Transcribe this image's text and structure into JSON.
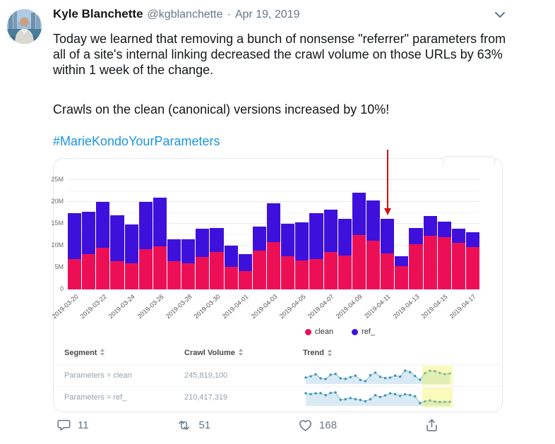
{
  "tweet": {
    "author": "Kyle Blanchette",
    "handle": "@kgblanchette",
    "separator": "·",
    "date": "Apr 19, 2019",
    "body_p1": "Today we learned that removing a bunch of nonsense \"referrer\" parameters from all of a site's internal linking decreased the crawl volume on those URLs by 63% within 1 week of the change.",
    "body_p2": "Crawls on the clean (canonical) versions increased by 10%!",
    "hashtag": "#MarieKondoYourParameters"
  },
  "actions": {
    "reply_count": "11",
    "retweet_count": "51",
    "like_count": "168"
  },
  "legend": [
    {
      "label": "clean",
      "color": "#ed0f56"
    },
    {
      "label": "ref_",
      "color": "#3e10dc"
    }
  ],
  "table": {
    "headers": [
      "Segment",
      "Crawl Volume",
      "Trend"
    ],
    "rows": [
      {
        "segment": "Parameters = clean",
        "crawl_volume": "245,819,100",
        "trend_index": 1
      },
      {
        "segment": "Parameters = ref_",
        "crawl_volume": "210,417,319",
        "trend_index": 2
      }
    ]
  },
  "colors": {
    "link": "#1b95e0",
    "muted": "#657786",
    "arrow": "#d41111",
    "spark_line": "#7fbdd6",
    "spark_dot": "#3e93b8",
    "spark_fill": "#d9eaf4",
    "spark_highlight": "#f0f24e"
  },
  "chart_data": [
    {
      "type": "bar",
      "stacked": true,
      "values_unit": "millions of crawls",
      "x": [
        "2019-03-20",
        "2019-03-21",
        "2019-03-22",
        "2019-03-23",
        "2019-03-24",
        "2019-03-25",
        "2019-03-26",
        "2019-03-27",
        "2019-03-28",
        "2019-03-29",
        "2019-03-30",
        "2019-03-31",
        "2019-04-01",
        "2019-04-02",
        "2019-04-03",
        "2019-04-04",
        "2019-04-05",
        "2019-04-06",
        "2019-04-07",
        "2019-04-08",
        "2019-04-09",
        "2019-04-10",
        "2019-04-11",
        "2019-04-12",
        "2019-04-13",
        "2019-04-14",
        "2019-04-15",
        "2019-04-16",
        "2019-04-17"
      ],
      "shown_xticks": [
        "2019-03-20",
        "2019-03-22",
        "2019-03-24",
        "2019-03-26",
        "2019-03-28",
        "2019-03-30",
        "2019-04-01",
        "2019-04-03",
        "2019-04-05",
        "2019-04-07",
        "2019-04-09",
        "2019-04-11",
        "2019-04-13",
        "2019-04-15",
        "2019-04-17"
      ],
      "series": [
        {
          "name": "clean",
          "color": "#ed0f56",
          "values": [
            7.0,
            8.0,
            9.5,
            6.4,
            5.9,
            9.2,
            9.8,
            6.4,
            6.0,
            7.4,
            8.5,
            5.1,
            4.2,
            8.8,
            10.8,
            7.6,
            6.6,
            7.0,
            8.5,
            7.7,
            12.4,
            11.2,
            8.2,
            5.3,
            10.4,
            12.3,
            12.0,
            10.6,
            9.7
          ]
        },
        {
          "name": "ref_",
          "color": "#3e10dc",
          "values": [
            10.5,
            9.8,
            10.5,
            10.6,
            8.9,
            10.8,
            11.2,
            5.1,
            5.5,
            6.5,
            5.6,
            4.9,
            3.8,
            5.5,
            8.9,
            7.4,
            8.7,
            10.5,
            9.8,
            8.4,
            9.7,
            9.1,
            7.9,
            2.3,
            3.7,
            4.5,
            3.5,
            3.2,
            3.3
          ]
        }
      ],
      "ylim": [
        0,
        25
      ],
      "yticks": [
        "0",
        "5M",
        "10M",
        "15M",
        "20M",
        "25M"
      ],
      "legend_position": "bottom",
      "grid": true,
      "annotation": {
        "type": "arrow",
        "points_at": "2019-04-11",
        "color": "#d41111"
      }
    },
    {
      "type": "line",
      "name": "trend-clean",
      "series_label": "Parameters = clean",
      "values": [
        7.0,
        8.0,
        9.5,
        6.4,
        5.9,
        9.2,
        9.8,
        6.4,
        6.0,
        7.4,
        8.5,
        5.1,
        4.2,
        8.8,
        10.8,
        7.6,
        6.6,
        7.0,
        8.5,
        7.7,
        12.4,
        11.2,
        8.2,
        5.3,
        10.4,
        12.3,
        12.0,
        10.6,
        9.7,
        10.2
      ],
      "highlight_last_n": 6
    },
    {
      "type": "line",
      "name": "trend-ref",
      "series_label": "Parameters = ref_",
      "values": [
        10.5,
        9.8,
        10.5,
        10.6,
        8.9,
        10.8,
        11.2,
        5.1,
        5.5,
        6.5,
        5.6,
        4.9,
        3.8,
        5.5,
        8.9,
        7.4,
        8.7,
        10.5,
        9.8,
        8.4,
        9.7,
        9.1,
        7.9,
        2.3,
        3.7,
        4.5,
        3.5,
        3.2,
        3.3,
        3.4
      ],
      "highlight_last_n": 6
    }
  ]
}
